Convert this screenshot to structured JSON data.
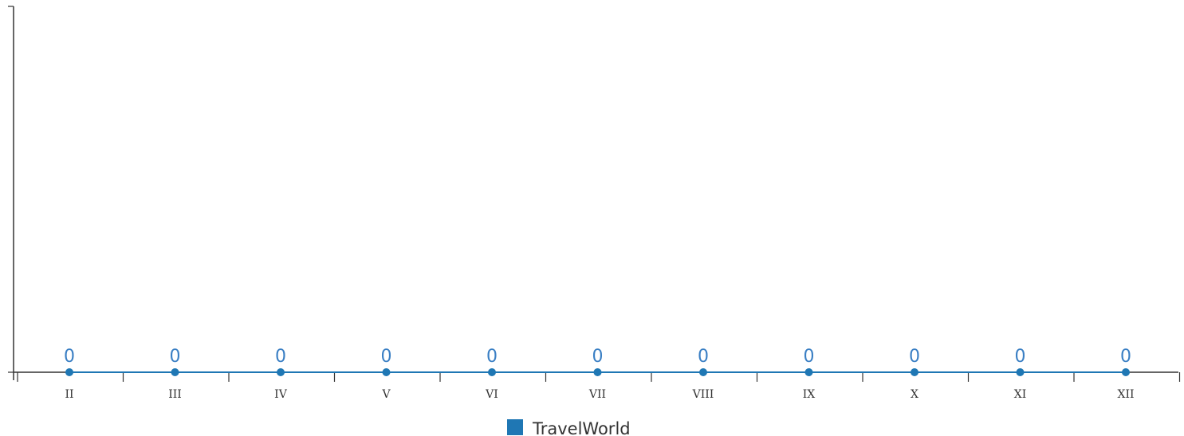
{
  "chart_data": {
    "type": "line",
    "categories": [
      "II",
      "III",
      "IV",
      "V",
      "VI",
      "VII",
      "VIII",
      "IX",
      "X",
      "XI",
      "XII"
    ],
    "series": [
      {
        "name": "TravelWorld",
        "values": [
          0,
          0,
          0,
          0,
          0,
          0,
          0,
          0,
          0,
          0,
          0
        ],
        "color": "#1f77b4"
      }
    ],
    "data_labels": true,
    "legend_position": "bottom-center",
    "grid": false
  }
}
